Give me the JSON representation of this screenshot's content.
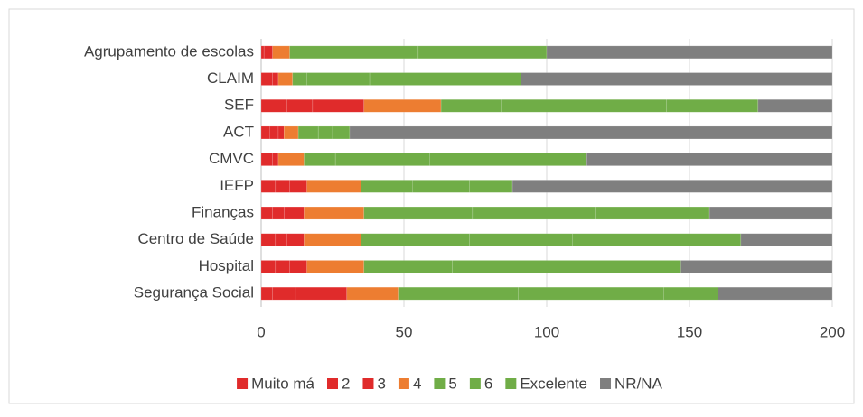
{
  "chart_data": {
    "type": "stacked_bar_horizontal",
    "categories": [
      "Agrupamento de escolas",
      "CLAIM",
      "SEF",
      "ACT",
      "CMVC",
      "IEFP",
      "Finanças",
      "Centro de Saúde",
      "Hospital",
      "Segurança Social"
    ],
    "series": [
      {
        "name": "Muito má",
        "color": "#e02b2b",
        "values": [
          1,
          2,
          9,
          3,
          2,
          5,
          4,
          5,
          5,
          4
        ]
      },
      {
        "name": "2",
        "color": "#e02b2b",
        "values": [
          1,
          2,
          9,
          3,
          2,
          5,
          4,
          4,
          5,
          8
        ]
      },
      {
        "name": "3",
        "color": "#e02b2b",
        "values": [
          2,
          2,
          18,
          2,
          2,
          6,
          7,
          6,
          6,
          18
        ]
      },
      {
        "name": "4",
        "color": "#ed7d31",
        "values": [
          6,
          5,
          27,
          5,
          9,
          19,
          21,
          20,
          20,
          18
        ]
      },
      {
        "name": "5",
        "color": "#70ad47",
        "values": [
          12,
          5,
          21,
          7,
          11,
          18,
          38,
          38,
          31,
          42
        ]
      },
      {
        "name": "6",
        "color": "#70ad47",
        "values": [
          33,
          22,
          58,
          5,
          33,
          20,
          43,
          36,
          37,
          51
        ]
      },
      {
        "name": "Excelente",
        "color": "#70ad47",
        "values": [
          45,
          53,
          32,
          6,
          55,
          15,
          40,
          59,
          43,
          19
        ]
      },
      {
        "name": "NR/NA",
        "color": "#7f7f7f",
        "values": [
          100,
          109,
          26,
          169,
          86,
          112,
          43,
          32,
          53,
          40
        ]
      }
    ],
    "xlim": [
      0,
      200
    ],
    "xticks": [
      0,
      50,
      100,
      150,
      200
    ],
    "grid": true,
    "legend": "bottom"
  }
}
